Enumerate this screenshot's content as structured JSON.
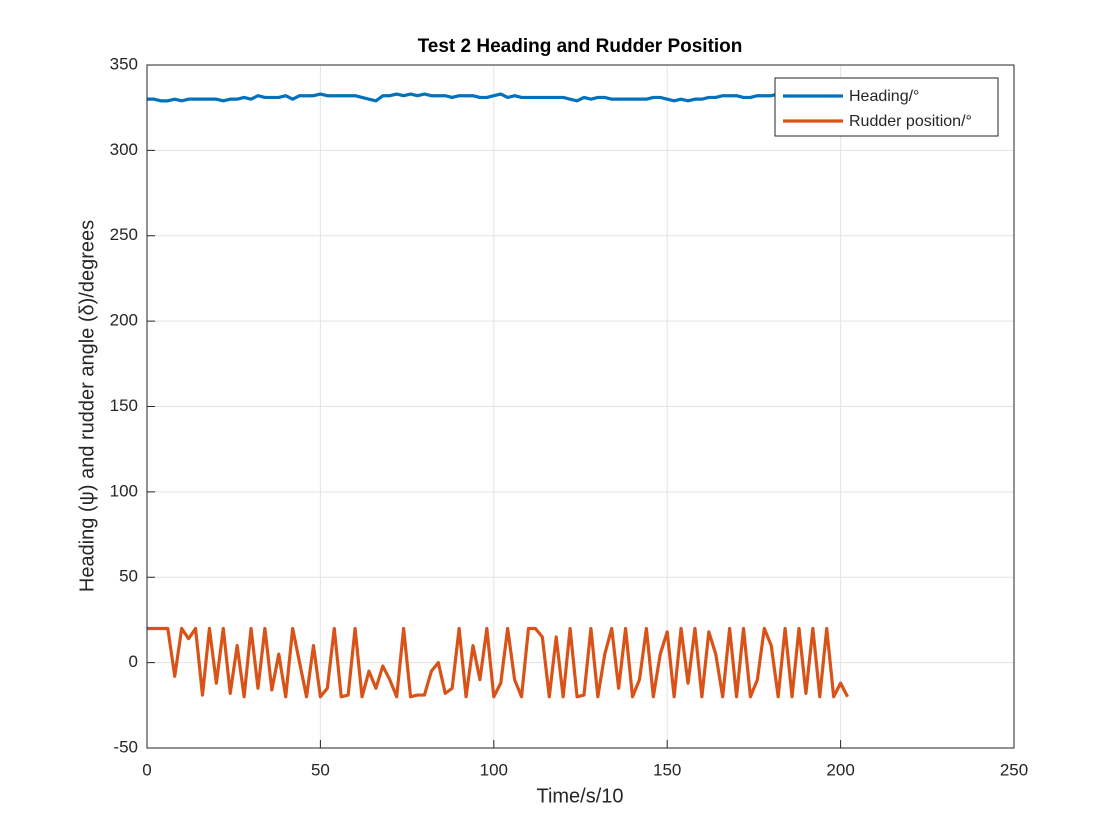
{
  "chart_data": {
    "type": "line",
    "title": "Test 2 Heading and Rudder Position",
    "xlabel": "Time/s/10",
    "ylabel": "Heading (ψ) and rudder angle (δ)/degrees",
    "x": [
      0,
      2,
      4,
      6,
      8,
      10,
      12,
      14,
      16,
      18,
      20,
      22,
      24,
      26,
      28,
      30,
      32,
      34,
      36,
      38,
      40,
      42,
      44,
      46,
      48,
      50,
      52,
      54,
      56,
      58,
      60,
      62,
      64,
      66,
      68,
      70,
      72,
      74,
      76,
      78,
      80,
      82,
      84,
      86,
      88,
      90,
      92,
      94,
      96,
      98,
      100,
      102,
      104,
      106,
      108,
      110,
      112,
      114,
      116,
      118,
      120,
      122,
      124,
      126,
      128,
      130,
      132,
      134,
      136,
      138,
      140,
      142,
      144,
      146,
      148,
      150,
      152,
      154,
      156,
      158,
      160,
      162,
      164,
      166,
      168,
      170,
      172,
      174,
      176,
      178,
      180,
      182,
      184,
      186,
      188,
      190,
      192,
      194,
      196,
      198,
      200,
      202
    ],
    "series": [
      {
        "name": "Heading/°",
        "color": "#0072BD",
        "values": [
          330,
          330,
          329,
          329,
          330,
          329,
          330,
          330,
          330,
          330,
          330,
          329,
          330,
          330,
          331,
          330,
          332,
          331,
          331,
          331,
          332,
          330,
          332,
          332,
          332,
          333,
          332,
          332,
          332,
          332,
          332,
          331,
          330,
          329,
          332,
          332,
          333,
          332,
          333,
          332,
          333,
          332,
          332,
          332,
          331,
          332,
          332,
          332,
          331,
          331,
          332,
          333,
          331,
          332,
          331,
          331,
          331,
          331,
          331,
          331,
          331,
          330,
          329,
          331,
          330,
          331,
          331,
          330,
          330,
          330,
          330,
          330,
          330,
          331,
          331,
          330,
          329,
          330,
          329,
          330,
          330,
          331,
          331,
          332,
          332,
          332,
          331,
          331,
          332,
          332,
          332,
          333,
          332,
          331,
          331,
          331,
          330,
          330,
          330,
          330,
          330,
          330
        ]
      },
      {
        "name": "Rudder position/°",
        "color": "#D95319",
        "values": [
          20,
          20,
          20,
          20,
          -8,
          20,
          14,
          20,
          -19,
          20,
          -12,
          20,
          -18,
          10,
          -20,
          20,
          -15,
          20,
          -16,
          5,
          -20,
          20,
          0,
          -20,
          10,
          -20,
          -15,
          20,
          -20,
          -19,
          20,
          -20,
          -5,
          -15,
          -2,
          -10,
          -20,
          20,
          -20,
          -19,
          -19,
          -5,
          0,
          -18,
          -15,
          20,
          -20,
          10,
          -10,
          20,
          -20,
          -12,
          20,
          -10,
          -20,
          20,
          20,
          15,
          -20,
          15,
          -20,
          20,
          -20,
          -19,
          20,
          -20,
          5,
          20,
          -15,
          20,
          -20,
          -10,
          20,
          -20,
          5,
          18,
          -20,
          20,
          -12,
          20,
          -20,
          18,
          5,
          -20,
          20,
          -20,
          20,
          -20,
          -10,
          20,
          10,
          -20,
          20,
          -20,
          20,
          -18,
          20,
          -20,
          20,
          -20,
          -12,
          -20
        ]
      }
    ],
    "xlim": [
      0,
      250
    ],
    "xticks": [
      0,
      50,
      100,
      150,
      200,
      250
    ],
    "ylim": [
      -50,
      350
    ],
    "yticks": [
      -50,
      0,
      50,
      100,
      150,
      200,
      250,
      300,
      350
    ],
    "grid": true,
    "legend": "northeast"
  }
}
